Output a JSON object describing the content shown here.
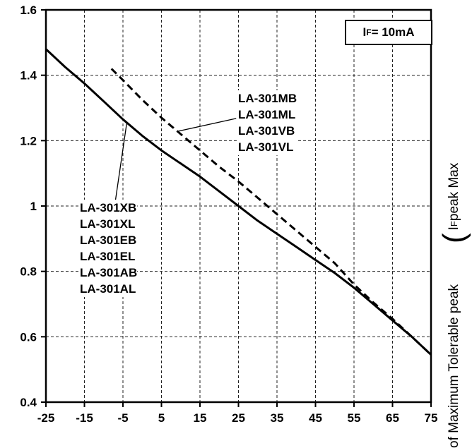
{
  "chart_data": {
    "type": "line",
    "title": "",
    "condition": "IF = 10mA",
    "xlabel": "",
    "ylabel_right_partial": "of Maximum Tolerable peak ( IF peak Max",
    "xlim": [
      -25,
      75
    ],
    "ylim": [
      0.4,
      1.6
    ],
    "grid": true,
    "x_tick_labels": [
      "-25",
      "-15",
      "-5",
      "5",
      "15",
      "25",
      "35",
      "45",
      "55",
      "65",
      "75"
    ],
    "y_tick_labels": [
      "0.4",
      "0.6",
      "0.8",
      "1",
      "1.2",
      "1.4",
      "1.6"
    ],
    "series": [
      {
        "name": "LA-301XB / LA-301XL / LA-301EB / LA-301EL / LA-301AB / LA-301AL",
        "style": "solid",
        "x": [
          -25,
          -20,
          -15,
          -10,
          -5,
          0,
          5,
          10,
          15,
          20,
          25,
          30,
          35,
          40,
          45,
          50,
          55,
          60,
          65,
          70,
          75
        ],
        "y": [
          1.48,
          1.425,
          1.375,
          1.32,
          1.265,
          1.215,
          1.17,
          1.13,
          1.09,
          1.045,
          1.0,
          0.955,
          0.915,
          0.875,
          0.835,
          0.795,
          0.75,
          0.7,
          0.65,
          0.6,
          0.545
        ]
      },
      {
        "name": "LA-301MB / LA-301ML / LA-301VB / LA-301VL",
        "style": "dashed",
        "x": [
          -8,
          -5,
          0,
          5,
          10,
          15,
          20,
          25,
          30,
          35,
          40,
          45,
          50,
          55,
          60,
          65,
          70,
          75
        ],
        "y": [
          1.42,
          1.385,
          1.325,
          1.27,
          1.22,
          1.17,
          1.12,
          1.075,
          1.025,
          0.975,
          0.925,
          0.875,
          0.825,
          0.76,
          0.705,
          0.655,
          0.6,
          0.545
        ]
      }
    ],
    "annotation_lines": [
      {
        "from": [
          24.4,
          1.268
        ],
        "to": [
          9.0,
          1.228
        ]
      },
      {
        "from": [
          -7.0,
          1.013
        ],
        "to": [
          -4.0,
          1.255
        ]
      }
    ]
  },
  "legend_box": {
    "prefix": "I",
    "sub": "F",
    "rest": "= 10mA"
  },
  "annotations": {
    "dashed_models": "LA-301MB\nLA-301ML\nLA-301VB\nLA-301VL",
    "solid_models": "LA-301XB\nLA-301XL\nLA-301EB\nLA-301EL\nLA-301AB\nLA-301AL"
  },
  "right_axis_label": {
    "part1": "of Maximum Tolerable peak",
    "bracket": "(",
    "i": "I",
    "sub": "F",
    "part2": " peak Max"
  }
}
